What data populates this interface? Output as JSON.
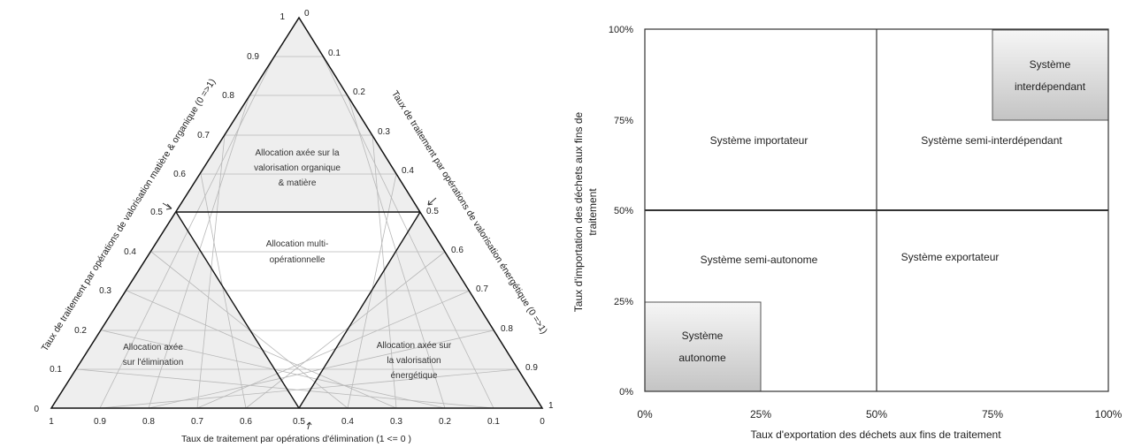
{
  "ternary": {
    "ticks": [
      "0",
      "0.1",
      "0.2",
      "0.3",
      "0.4",
      "0.5",
      "0.6",
      "0.7",
      "0.8",
      "0.9",
      "1"
    ],
    "left_axis_title": "Taux de traitement par opérations de valorisation matière & organique (0 =>1)",
    "right_axis_title": "Taux de traitement par opérations de valorisation énergétique (0 =>1)",
    "bottom_axis_title": "Taux de traitement par opérations d'élimination (1 <= 0 )",
    "regions": {
      "top": [
        "Allocation axée sur la",
        "valorisation organique",
        "& matière"
      ],
      "center": [
        "Allocation multi-",
        "opérationnelle"
      ],
      "left": [
        "Allocation axée",
        "sur l'élimination"
      ],
      "right": [
        "Allocation axée sur",
        "la valorisation",
        "énergétique"
      ]
    },
    "colors": {
      "shaded": "#eeeeee",
      "grid": "#b5b5b5",
      "outline": "#111111"
    }
  },
  "quadrant": {
    "y_ticks": [
      "100%",
      "75%",
      "50%",
      "25%",
      "0%"
    ],
    "x_ticks": [
      "0%",
      "25%",
      "50%",
      "75%",
      "100%"
    ],
    "y_axis_title": [
      "Taux d'importation des déchets aux fins de",
      "traitement"
    ],
    "x_axis_title": "Taux d'exportation des déchets aux fins de traitement",
    "labels": {
      "importateur": "Système importateur",
      "semi_interdependant": "Système semi-interdépendant",
      "semi_autonome": "Système semi-autonome",
      "exportateur": "Système exportateur",
      "interdependant": [
        "Système",
        "interdépendant"
      ],
      "autonome": [
        "Système",
        "autonome"
      ]
    },
    "colors": {
      "box_fill_top": "#f4f4f4",
      "box_fill_bottom": "#c9c9c9",
      "grid": "#333333"
    }
  }
}
